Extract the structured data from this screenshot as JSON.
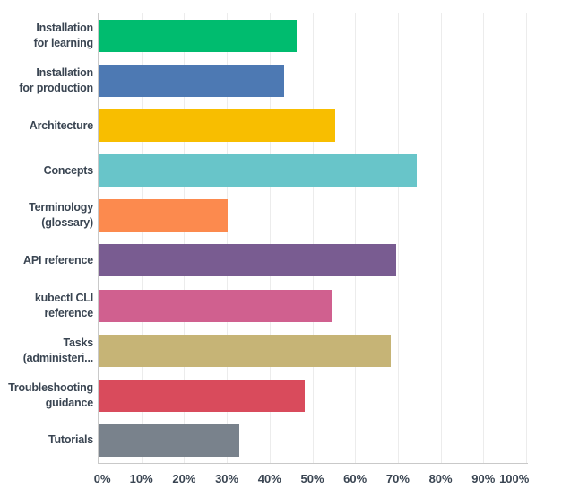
{
  "chart_data": {
    "type": "bar",
    "orientation": "horizontal",
    "title": "",
    "xlabel": "",
    "ylabel": "",
    "unit": "%",
    "xlim": [
      0,
      100
    ],
    "grid": "vertical",
    "legend": "none",
    "categories": [
      "Installation\nfor learning",
      "Installation\nfor production",
      "Architecture",
      "Concepts",
      "Terminology\n(glossary)",
      "API reference",
      "kubectl CLI\nreference",
      "Tasks\n(administeri...",
      "Troubleshooting\nguidance",
      "Tutorials"
    ],
    "values": [
      46.3,
      43.3,
      55.4,
      74.5,
      30.1,
      69.5,
      54.5,
      68.4,
      48.3,
      33.0
    ],
    "bar_colors": [
      "#00BC6F",
      "#4D79B3",
      "#F8BE00",
      "#68C5C9",
      "#FC8A4E",
      "#795C91",
      "#D0608F",
      "#C6B476",
      "#D94B5C",
      "#79828C"
    ],
    "x_ticks": [
      "0%",
      "10%",
      "20%",
      "30%",
      "40%",
      "50%",
      "60%",
      "70%",
      "80%",
      "90%",
      "100%"
    ]
  },
  "style_colors": {
    "text": "#3a4552",
    "axis_line": "#c9c9c9",
    "gridline": "#ececec",
    "background": "#ffffff"
  }
}
